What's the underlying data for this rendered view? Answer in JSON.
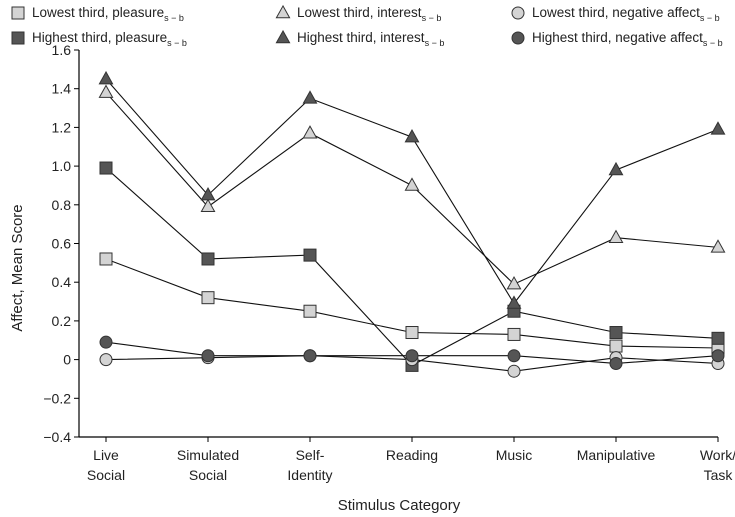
{
  "chart_data": {
    "type": "line",
    "title": "",
    "xlabel": "Stimulus Category",
    "ylabel": "Affect, Mean Score",
    "ylim": [
      -0.4,
      1.6
    ],
    "yticks": [
      "1.6",
      "1.4",
      "1.2",
      "1.0",
      "0.8",
      "0.6",
      "0.4",
      "0.2",
      "0",
      "−0.2",
      "−0.4"
    ],
    "categories": [
      [
        "Live",
        "Social"
      ],
      [
        "Simulated",
        "Social"
      ],
      [
        "Self-",
        "Identity"
      ],
      [
        "Reading"
      ],
      [
        "Music"
      ],
      [
        "Manipulative"
      ],
      [
        "Work/",
        "Task"
      ]
    ],
    "legend_position": "top",
    "grid": false,
    "series": [
      {
        "name": "Lowest third, pleasure",
        "subscript": "s − b",
        "marker": "square",
        "fill": "#d4d4d4",
        "values": [
          0.52,
          0.32,
          0.25,
          0.14,
          0.13,
          0.07,
          0.06
        ]
      },
      {
        "name": "Highest third, pleasure",
        "subscript": "s − b",
        "marker": "square",
        "fill": "#555555",
        "values": [
          0.99,
          0.52,
          0.54,
          -0.03,
          0.25,
          0.14,
          0.11
        ]
      },
      {
        "name": "Lowest third, interest",
        "subscript": "s − b",
        "marker": "triangle",
        "fill": "#d4d4d4",
        "values": [
          1.38,
          0.79,
          1.17,
          0.9,
          0.39,
          0.63,
          0.58
        ]
      },
      {
        "name": "Highest third, interest",
        "subscript": "s − b",
        "marker": "triangle",
        "fill": "#555555",
        "values": [
          1.45,
          0.85,
          1.35,
          1.15,
          0.29,
          0.98,
          1.19
        ]
      },
      {
        "name": "Lowest third, negative affect",
        "subscript": "s − b",
        "marker": "circle",
        "fill": "#d4d4d4",
        "values": [
          0.0,
          0.01,
          0.02,
          0.0,
          -0.06,
          0.01,
          -0.02
        ]
      },
      {
        "name": "Highest third, negative affect",
        "subscript": "s − b",
        "marker": "circle",
        "fill": "#555555",
        "values": [
          0.09,
          0.02,
          0.02,
          0.02,
          0.02,
          -0.02,
          0.02
        ]
      }
    ]
  }
}
